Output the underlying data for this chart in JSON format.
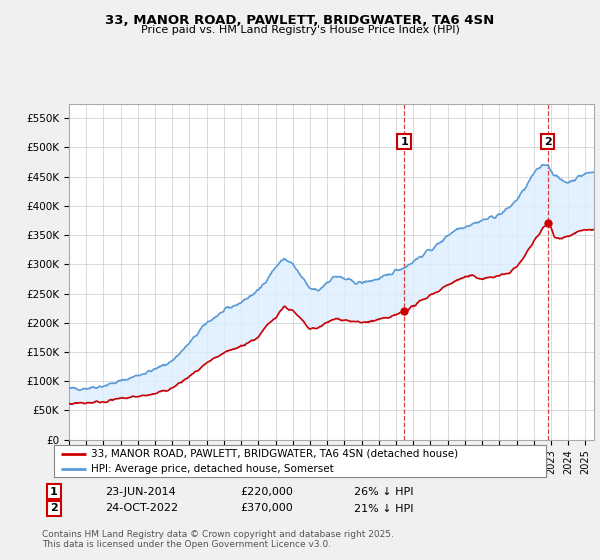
{
  "title1": "33, MANOR ROAD, PAWLETT, BRIDGWATER, TA6 4SN",
  "title2": "Price paid vs. HM Land Registry's House Price Index (HPI)",
  "ylabel_ticks": [
    "£0",
    "£50K",
    "£100K",
    "£150K",
    "£200K",
    "£250K",
    "£300K",
    "£350K",
    "£400K",
    "£450K",
    "£500K",
    "£550K"
  ],
  "ytick_vals": [
    0,
    50000,
    100000,
    150000,
    200000,
    250000,
    300000,
    350000,
    400000,
    450000,
    500000,
    550000
  ],
  "xmin": 1995,
  "xmax": 2025.5,
  "ymin": 0,
  "ymax": 575000,
  "hpi_color": "#5b9bd5",
  "hpi_fill_color": "#ddeeff",
  "price_color": "#cc0000",
  "marker1_date": 2014.47,
  "marker1_price": 220000,
  "marker1_label": "1",
  "marker1_date_str": "23-JUN-2014",
  "marker1_price_str": "£220,000",
  "marker1_note": "26% ↓ HPI",
  "marker2_date": 2022.81,
  "marker2_price": 370000,
  "marker2_label": "2",
  "marker2_date_str": "24-OCT-2022",
  "marker2_price_str": "£370,000",
  "marker2_note": "21% ↓ HPI",
  "legend_label1": "33, MANOR ROAD, PAWLETT, BRIDGWATER, TA6 4SN (detached house)",
  "legend_label2": "HPI: Average price, detached house, Somerset",
  "footer1": "Contains HM Land Registry data © Crown copyright and database right 2025.",
  "footer2": "This data is licensed under the Open Government Licence v3.0.",
  "bg_color": "#f0f0f0",
  "plot_bg": "#ffffff",
  "grid_color": "#cccccc"
}
